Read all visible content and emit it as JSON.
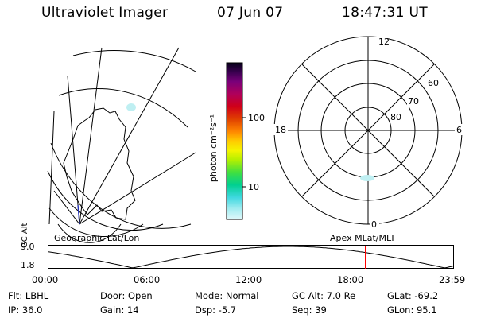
{
  "header": {
    "instrument": "Ultraviolet Imager",
    "date": "07 Jun 07",
    "time": "18:47:31 UT"
  },
  "colorbar": {
    "unit": "photon cm⁻²s⁻¹",
    "ticks": [
      "100",
      "10"
    ],
    "colors": [
      "#050018",
      "#3a0050",
      "#7a007a",
      "#b0005a",
      "#d00018",
      "#e04000",
      "#ff8800",
      "#ffcc00",
      "#f4f400",
      "#b4f000",
      "#40e040",
      "#00d090",
      "#40d8e0",
      "#a0ecf0",
      "#e0f8fa"
    ]
  },
  "polar_plot": {
    "mlt_labels": {
      "top": "12",
      "left": "18",
      "right": "6",
      "bottom": "0"
    },
    "lat_labels": [
      "60",
      "70",
      "80"
    ]
  },
  "map_labels": {
    "left": "Geographic Lat/Lon",
    "right": "Apex MLat/MLT"
  },
  "gc_alt_plot": {
    "ylabel": "GC Alt",
    "ytick_labels": [
      "9.0",
      "1.8"
    ],
    "xtick_labels": [
      "00:00",
      "06:00",
      "12:00",
      "18:00",
      "23:59"
    ],
    "current_time_marker_hour": 18.79
  },
  "info": {
    "filter": "Flt: LBHL",
    "ip": "IP: 36.0",
    "door": "Door: Open",
    "gain": "Gain: 14",
    "mode": "Mode: Normal",
    "dsp": "Dsp:   -5.7",
    "gc_alt": "GC Alt: 7.0 Re",
    "seq": "Seq: 39",
    "glat": "GLat: -69.2",
    "glon": "GLon:  95.1"
  }
}
